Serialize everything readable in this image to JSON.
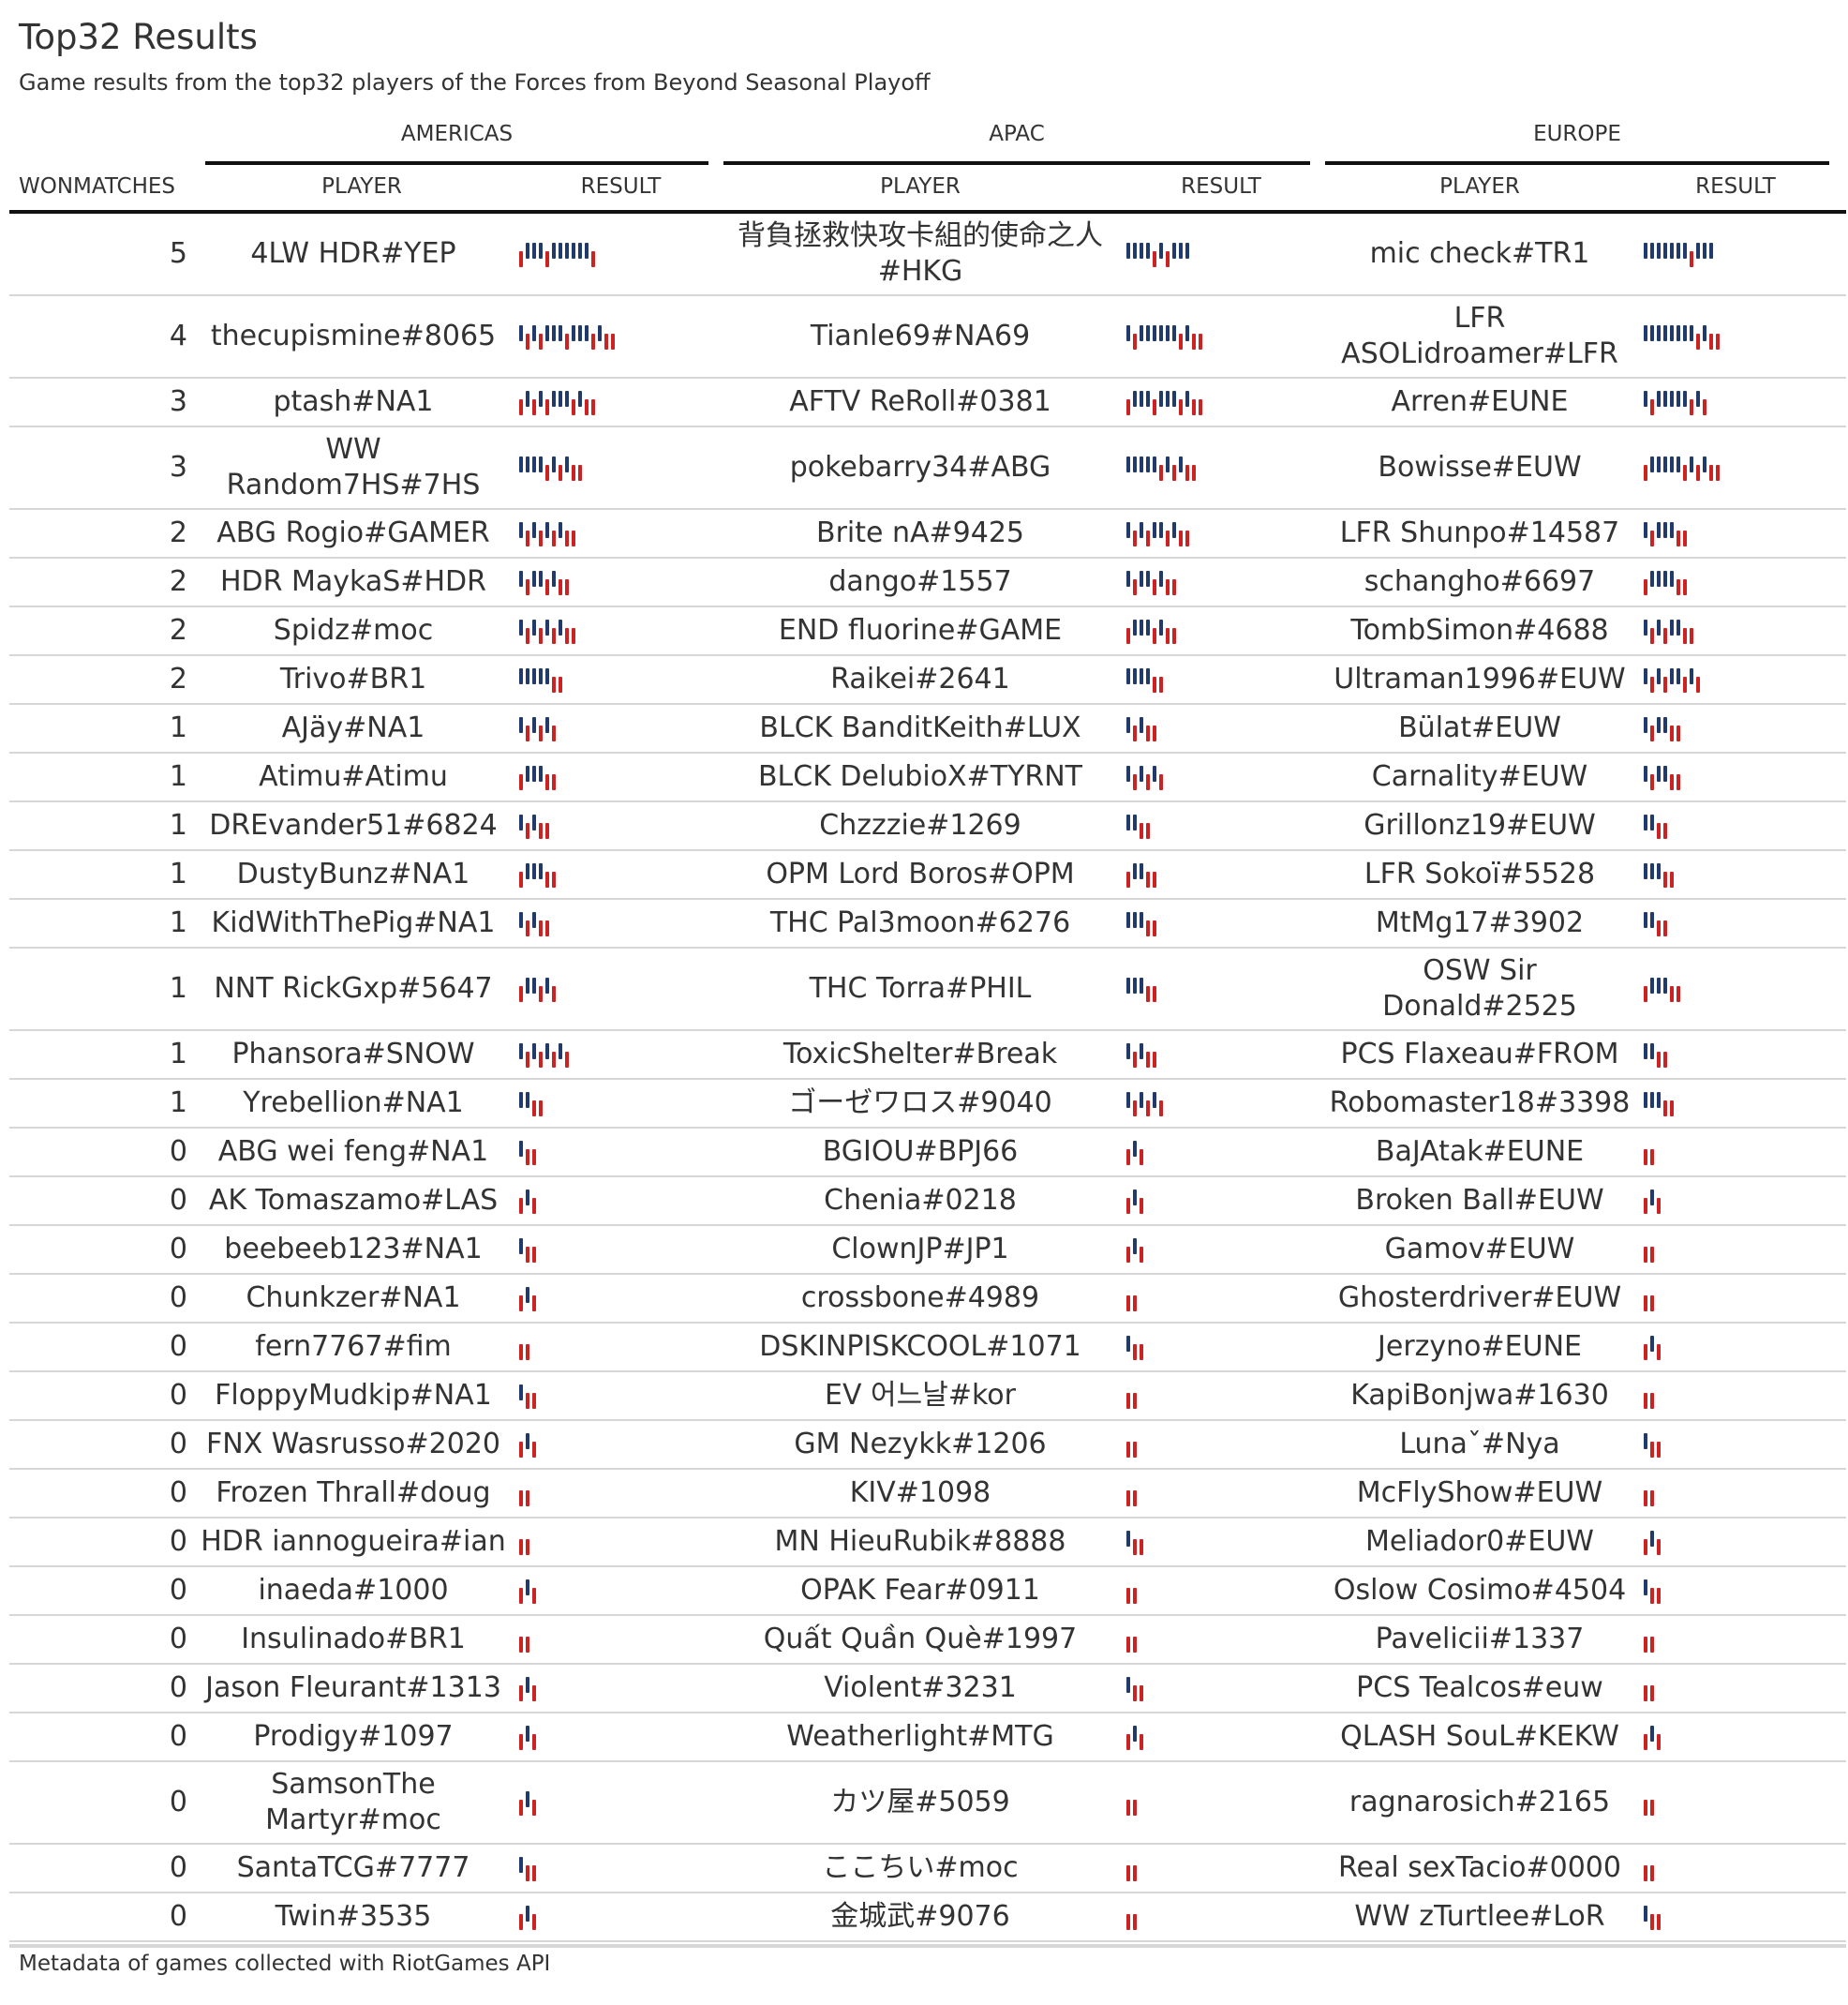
{
  "title": "Top32 Results",
  "subtitle": "Game results from the top32 players of the Forces from Beyond Seasonal Playoff",
  "footer": "Metadata of games collected with RiotGames API",
  "headers": {
    "won": "WONMATCHES",
    "americas": "AMERICAS",
    "apac": "APAC",
    "europe": "EUROPE",
    "player": "PLAYER",
    "result": "RESULT"
  },
  "colors": {
    "win": "#1f3a6b",
    "loss": "#cc2222",
    "rule": "#111111",
    "row_rule": "#d7d7d7"
  },
  "rows": [
    {
      "won": "5",
      "am": {
        "player": "4LW HDR#YEP",
        "result": "LWWWLWWWWWWL"
      },
      "ap": {
        "player": "背負拯救快攻卡組的使命之人#HKG",
        "result": "WWWWLWLWWW"
      },
      "eu": {
        "player": "mic check#TR1",
        "result": "WWWWWWWLWWW"
      }
    },
    {
      "won": "4",
      "am": {
        "player": "thecupismine#8065",
        "result": "WLWLWWWLWWWLWLL"
      },
      "ap": {
        "player": "Tianle69#NA69",
        "result": "WLWWWWWWLWLL"
      },
      "eu": {
        "player": "LFR ASOLidroamer#LFR",
        "result": "WWWWWWWWLWLL"
      }
    },
    {
      "won": "3",
      "am": {
        "player": "ptash#NA1",
        "result": "LWLWLWWWLWLL"
      },
      "ap": {
        "player": "AFTV ReRoll#0381",
        "result": "LWWWLWWWLWLL"
      },
      "eu": {
        "player": "Arren#EUNE",
        "result": "WLWWWWWLWL"
      }
    },
    {
      "won": "3",
      "am": {
        "player": "WW Random7HS#7HS",
        "result": "WWWWLWLWLL"
      },
      "ap": {
        "player": "pokebarry34#ABG",
        "result": "WWWWWLWLWLL"
      },
      "eu": {
        "player": "Bowisse#EUW",
        "result": "LWWWWWLWLWLL"
      }
    },
    {
      "won": "2",
      "am": {
        "player": "ABG Rogio#GAMER",
        "result": "WLWLWLWLL"
      },
      "ap": {
        "player": "Brite nA#9425",
        "result": "WLWLWWLWLL"
      },
      "eu": {
        "player": "LFR Shunpo#14587",
        "result": "WLWWWLL"
      }
    },
    {
      "won": "2",
      "am": {
        "player": "HDR MaykaS#HDR",
        "result": "WLWWLWLL"
      },
      "ap": {
        "player": "dango#1557",
        "result": "WLWWLWLL"
      },
      "eu": {
        "player": "schangho#6697",
        "result": "LWWWWLL"
      }
    },
    {
      "won": "2",
      "am": {
        "player": "Spidz#moc",
        "result": "WLWLWLWLL"
      },
      "ap": {
        "player": "END fluorine#GAME",
        "result": "LWWWLWLL"
      },
      "eu": {
        "player": "TombSimon#4688",
        "result": "WLWLWWLL"
      }
    },
    {
      "won": "2",
      "am": {
        "player": "Trivo#BR1",
        "result": "WWWWWLL"
      },
      "ap": {
        "player": "Raikei#2641",
        "result": "WWWWLL"
      },
      "eu": {
        "player": "Ultraman1996#EUW",
        "result": "WLWLWWLWL"
      }
    },
    {
      "won": "1",
      "am": {
        "player": "AJäy#NA1",
        "result": "WLWLWL"
      },
      "ap": {
        "player": "BLCK BanditKeith#LUX",
        "result": "WLWLL"
      },
      "eu": {
        "player": "Bülat#EUW",
        "result": "WLWWLL"
      }
    },
    {
      "won": "1",
      "am": {
        "player": "Atimu#Atimu",
        "result": "LWWWLL"
      },
      "ap": {
        "player": "BLCK DelubioX#TYRNT",
        "result": "WLWLWL"
      },
      "eu": {
        "player": "Carnality#EUW",
        "result": "WLWWLL"
      }
    },
    {
      "won": "1",
      "am": {
        "player": "DREvander51#6824",
        "result": "WLWLL"
      },
      "ap": {
        "player": "Chzzzie#1269",
        "result": "WWLL"
      },
      "eu": {
        "player": "Grillonz19#EUW",
        "result": "WWLL"
      }
    },
    {
      "won": "1",
      "am": {
        "player": "DustyBunz#NA1",
        "result": "LWWWLL"
      },
      "ap": {
        "player": "OPM Lord Boros#OPM",
        "result": "LWWLL"
      },
      "eu": {
        "player": "LFR Sokoï#5528",
        "result": "WWWLL"
      }
    },
    {
      "won": "1",
      "am": {
        "player": "KidWithThePig#NA1",
        "result": "WLWLL"
      },
      "ap": {
        "player": "THC Pal3moon#6276",
        "result": "WWWLL"
      },
      "eu": {
        "player": "MtMg17#3902",
        "result": "WWLL"
      }
    },
    {
      "won": "1",
      "am": {
        "player": "NNT RickGxp#5647",
        "result": "LWWLWL"
      },
      "ap": {
        "player": "THC Torra#PHIL",
        "result": "WWWLL"
      },
      "eu": {
        "player": "OSW Sir Donald#2525",
        "result": "LWWWLL"
      }
    },
    {
      "won": "1",
      "am": {
        "player": "Phansora#SNOW",
        "result": "WLWLWLWL"
      },
      "ap": {
        "player": "ToxicShelter#Break",
        "result": "WLWLL"
      },
      "eu": {
        "player": "PCS Flaxeau#FROM",
        "result": "WWLL"
      }
    },
    {
      "won": "1",
      "am": {
        "player": "Yrebellion#NA1",
        "result": "WWLL"
      },
      "ap": {
        "player": "ゴーゼワロス#9040",
        "result": "WLWLWL"
      },
      "eu": {
        "player": "Robomaster18#3398",
        "result": "WWWLL"
      }
    },
    {
      "won": "0",
      "am": {
        "player": "ABG wei feng#NA1",
        "result": "WLL"
      },
      "ap": {
        "player": "BGIOU#BPJ66",
        "result": "LWL"
      },
      "eu": {
        "player": "BaJAtak#EUNE",
        "result": "LL"
      }
    },
    {
      "won": "0",
      "am": {
        "player": "AK Tomaszamo#LAS",
        "result": "LWL"
      },
      "ap": {
        "player": "Chenia#0218",
        "result": "LWL"
      },
      "eu": {
        "player": "Broken Ball#EUW",
        "result": "LWL"
      }
    },
    {
      "won": "0",
      "am": {
        "player": "beebeeb123#NA1",
        "result": "WLL"
      },
      "ap": {
        "player": "ClownJP#JP1",
        "result": "LWL"
      },
      "eu": {
        "player": "Gamov#EUW",
        "result": "LL"
      }
    },
    {
      "won": "0",
      "am": {
        "player": "Chunkzer#NA1",
        "result": "LWL"
      },
      "ap": {
        "player": "crossbone#4989",
        "result": "LL"
      },
      "eu": {
        "player": "Ghosterdriver#EUW",
        "result": "LL"
      }
    },
    {
      "won": "0",
      "am": {
        "player": "fern7767#fim",
        "result": "LL"
      },
      "ap": {
        "player": "DSKINPISKCOOL#1071",
        "result": "WLL"
      },
      "eu": {
        "player": "Jerzyno#EUNE",
        "result": "LWL"
      }
    },
    {
      "won": "0",
      "am": {
        "player": "FloppyMudkip#NA1",
        "result": "WLL"
      },
      "ap": {
        "player": "EV 어느날#kor",
        "result": "LL"
      },
      "eu": {
        "player": "KapiBonjwa#1630",
        "result": "LL"
      }
    },
    {
      "won": "0",
      "am": {
        "player": "FNX Wasrusso#2020",
        "result": "LWL"
      },
      "ap": {
        "player": "GM Nezykk#1206",
        "result": "LL"
      },
      "eu": {
        "player": "Lunaˇ#Nya",
        "result": "WLL"
      }
    },
    {
      "won": "0",
      "am": {
        "player": "Frozen Thrall#doug",
        "result": "LL"
      },
      "ap": {
        "player": "KIV#1098",
        "result": "LL"
      },
      "eu": {
        "player": "McFlyShow#EUW",
        "result": "LL"
      }
    },
    {
      "won": "0",
      "am": {
        "player": "HDR iannogueira#ian",
        "result": "LL"
      },
      "ap": {
        "player": "MN HieuRubik#8888",
        "result": "WLL"
      },
      "eu": {
        "player": "Meliador0#EUW",
        "result": "LWL"
      }
    },
    {
      "won": "0",
      "am": {
        "player": "inaeda#1000",
        "result": "LWL"
      },
      "ap": {
        "player": "OPAK Fear#0911",
        "result": "LL"
      },
      "eu": {
        "player": "Oslow Cosimo#4504",
        "result": "WLL"
      }
    },
    {
      "won": "0",
      "am": {
        "player": "Insulinado#BR1",
        "result": "LL"
      },
      "ap": {
        "player": "Quất Quần Què#1997",
        "result": "LL"
      },
      "eu": {
        "player": "Pavelicii#1337",
        "result": "LL"
      }
    },
    {
      "won": "0",
      "am": {
        "player": "Jason Fleurant#1313",
        "result": "LWL"
      },
      "ap": {
        "player": "Violent#3231",
        "result": "WLL"
      },
      "eu": {
        "player": "PCS Tealcos#euw",
        "result": "LL"
      }
    },
    {
      "won": "0",
      "am": {
        "player": "Prodigy#1097",
        "result": "LWL"
      },
      "ap": {
        "player": "Weatherlight#MTG",
        "result": "LWL"
      },
      "eu": {
        "player": "QLASH SouL#KEKW",
        "result": "LWL"
      }
    },
    {
      "won": "0",
      "am": {
        "player": "SamsonThe Martyr#moc",
        "result": "LWL"
      },
      "ap": {
        "player": "カツ屋#5059",
        "result": "LL"
      },
      "eu": {
        "player": "ragnarosich#2165",
        "result": "LL"
      }
    },
    {
      "won": "0",
      "am": {
        "player": "SantaTCG#7777",
        "result": "WLL"
      },
      "ap": {
        "player": "ここちい#moc",
        "result": "LL"
      },
      "eu": {
        "player": "Real sexTacio#0000",
        "result": "LL"
      }
    },
    {
      "won": "0",
      "am": {
        "player": "Twin#3535",
        "result": "LWL"
      },
      "ap": {
        "player": "金城武#9076",
        "result": "LL"
      },
      "eu": {
        "player": "WW zTurtlee#LoR",
        "result": "WLL"
      }
    }
  ]
}
